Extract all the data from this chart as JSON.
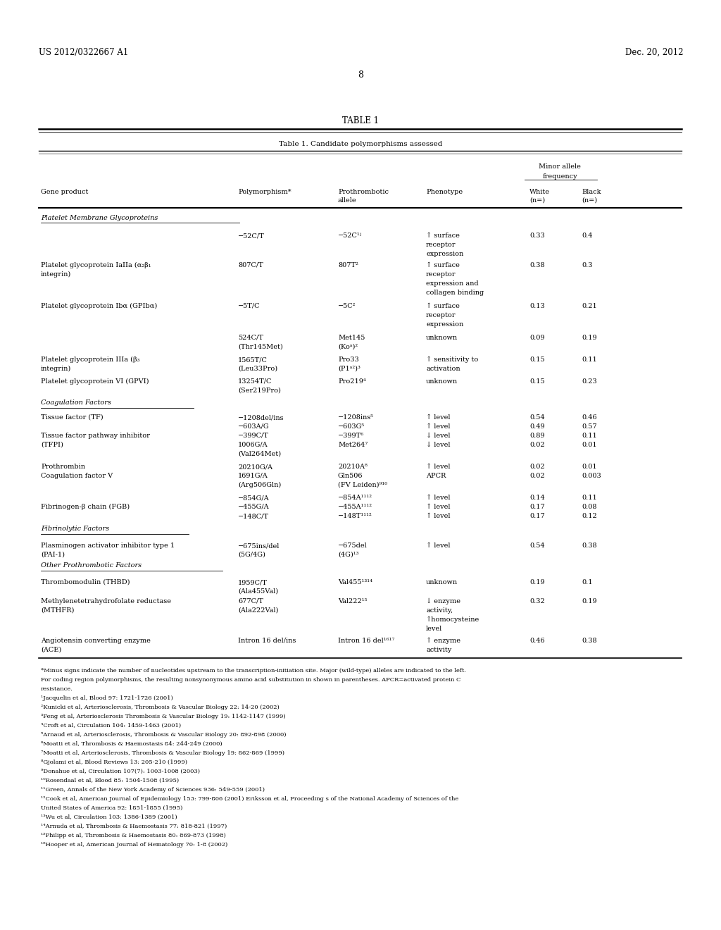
{
  "header_left": "US 2012/0322667 A1",
  "header_right": "Dec. 20, 2012",
  "page_number": "8",
  "table_title": "TABLE 1",
  "table_subtitle": "Table 1. Candidate polymorphisms assessed",
  "footnotes": [
    "*Minus signs indicate the number of nucleotides upstream to the transcription-initiation site. Major (wild-type) alleles are indicated to the left.",
    "For coding region polymorphisms, the resulting nonsynonymous amino acid substitution in shown in parentheses. APCR=activated protein C",
    "resistance.",
    "¹Jacquelin et al, Blood 97: 1721-1726 (2001)",
    "²Kunicki et al, Arteriosclerosis, Thrombosis & Vascular Biology 22: 14-20 (2002)",
    "³Feng et al, Arteriosclerosis Thrombosis & Vascular Biology 19: 1142-1147 (1999)",
    "⁴Croft et al, Circulation 104: 1459-1463 (2001)",
    "⁵Arnaud et al, Arteriosclerosis, Thrombosis & Vascular Biology 20: 892-898 (2000)",
    "⁶Moatti et al, Thrombosis & Haemostasis 84: 244-249 (2000)",
    "⁷Moatti et al, Arteriosclerosis, Thrombosis & Vascular Biology 19: 862-869 (1999)",
    "⁸Gjolami et al, Blood Reviews 13: 205-210 (1999)",
    "⁹Donahue et al, Circulation 107(7): 1003-1008 (2003)",
    "¹⁰Rosendaal et al, Blood 85: 1504-1508 (1995)",
    "¹¹Green, Annals of the New York Academy of Sciences 936: 549-559 (2001)",
    "¹²Cook et al, American Journal of Epidemiology 153: 799-806 (2001) Eriksson et al, Proceeding s of the National Academy of Sciences of the",
    "United States of America 92: 1851-1855 (1995)",
    "¹³Wu et al, Circulation 103: 1386-1389 (2001)",
    "¹⁴Arnuda et al, Thrombosis & Haemostasis 77: 818-821 (1997)",
    "¹⁵Philipp et al, Thrombosis & Haemostasis 80: 869-873 (1998)",
    "¹⁶Hooper et al, American Journal of Hematology 70: 1-8 (2002)"
  ],
  "bg_color": "#ffffff",
  "text_color": "#000000",
  "base_font_size": 7.0,
  "small_font_size": 6.0,
  "header_font_size": 8.5,
  "title_font_size": 8.5,
  "col_x": {
    "gene": 0.075,
    "poly": 0.33,
    "proto": 0.47,
    "pheno": 0.595,
    "white": 0.745,
    "black": 0.82
  }
}
